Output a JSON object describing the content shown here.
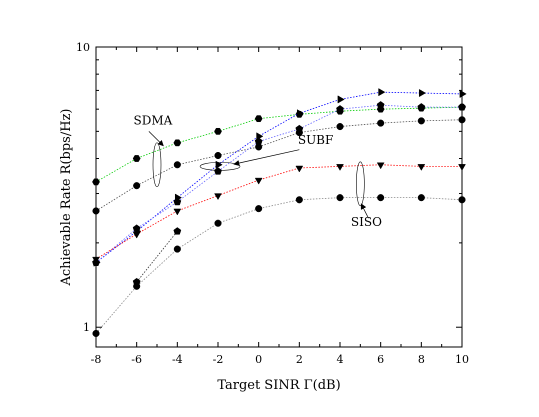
{
  "chart_data": {
    "type": "line",
    "xlabel": "Target SINR Γ(dB)",
    "ylabel": "Achievable Rate R(bps/Hz)",
    "x_ticks": [
      "-8",
      "-6",
      "-4",
      "-2",
      "0",
      "2",
      "4",
      "6",
      "8",
      "10"
    ],
    "y_ticks": [
      "1",
      "10"
    ],
    "xlim": [
      -8,
      10
    ],
    "ylim": [
      0.85,
      10
    ],
    "y_scale": "log",
    "grid": false,
    "annotations": [
      {
        "text": "SDMA",
        "x": -5.2,
        "y": 5.3
      },
      {
        "text": "SUBF",
        "x": 2.8,
        "y": 4.5
      },
      {
        "text": "SISO",
        "x": 5.3,
        "y": 2.3
      }
    ],
    "series": [
      {
        "color": "#00cc00",
        "marker": "hexagon",
        "line_style": "dotted",
        "x": [
          -8,
          -6,
          -4,
          -2,
          0,
          2,
          4,
          6,
          8,
          10
        ],
        "y": [
          3.3,
          4.0,
          4.55,
          5.0,
          5.55,
          5.75,
          5.9,
          6.0,
          6.05,
          6.1
        ]
      },
      {
        "color": "#555555",
        "marker": "circle",
        "line_style": "dotted",
        "x": [
          -8,
          -6,
          -4,
          -2,
          0,
          2,
          4,
          6,
          8,
          10
        ],
        "y": [
          2.6,
          3.2,
          3.8,
          4.1,
          4.4,
          4.95,
          5.2,
          5.35,
          5.45,
          5.5
        ]
      },
      {
        "color": "#0000ff",
        "marker": "triangle",
        "line_style": "dotted",
        "x": [
          -8,
          -6,
          -4,
          -2,
          0,
          2,
          4,
          6,
          8,
          10
        ],
        "y": [
          1.7,
          2.2,
          2.9,
          3.8,
          4.8,
          5.8,
          6.5,
          6.9,
          6.85,
          6.8
        ]
      },
      {
        "color": "#6666ff",
        "marker": "pentagon",
        "line_style": "dotted",
        "x": [
          -8,
          -6,
          -4,
          -2,
          0,
          2,
          4,
          6,
          8,
          10
        ],
        "y": [
          1.7,
          2.25,
          2.8,
          3.6,
          4.6,
          5.1,
          6.0,
          6.2,
          6.1,
          6.1
        ]
      },
      {
        "color": "#ff0000",
        "marker": "triangle-down",
        "line_style": "dotted",
        "x": [
          -8,
          -6,
          -4,
          -2,
          0,
          2,
          4,
          6,
          8,
          10
        ],
        "y": [
          1.75,
          2.15,
          2.6,
          2.95,
          3.35,
          3.7,
          3.75,
          3.8,
          3.75,
          3.75
        ]
      },
      {
        "color": "#888888",
        "marker": "circle",
        "line_style": "dotted",
        "x": [
          -8,
          -6,
          -4,
          -2,
          0,
          2,
          4,
          6,
          8,
          10
        ],
        "y": [
          0.95,
          1.4,
          1.9,
          2.35,
          2.65,
          2.85,
          2.9,
          2.9,
          2.9,
          2.85
        ]
      },
      {
        "color": "#333333",
        "marker": "pentagon",
        "line_style": "dotted",
        "x": [
          -6,
          -4
        ],
        "y": [
          1.45,
          2.2
        ]
      }
    ]
  }
}
